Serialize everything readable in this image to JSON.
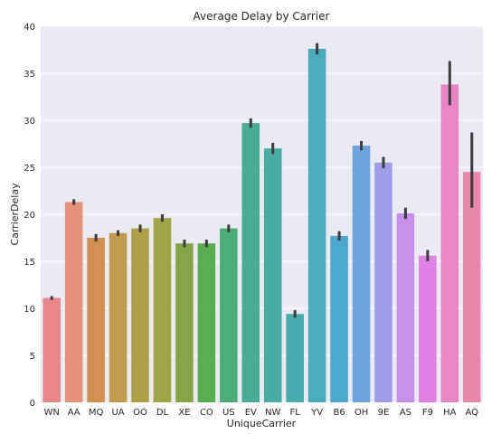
{
  "chart_data": {
    "type": "bar",
    "title": "Average Delay by Carrier",
    "xlabel": "UniqueCarrier",
    "ylabel": "CarrierDelay",
    "ylim": [
      0,
      40
    ],
    "yticks": [
      0,
      5,
      10,
      15,
      20,
      25,
      30,
      35,
      40
    ],
    "grid": true,
    "legend": "none",
    "error_bars": true,
    "categories": [
      "WN",
      "AA",
      "MQ",
      "UA",
      "OO",
      "DL",
      "XE",
      "CO",
      "US",
      "EV",
      "NW",
      "FL",
      "YV",
      "B6",
      "OH",
      "9E",
      "AS",
      "F9",
      "HA",
      "AQ"
    ],
    "values": [
      11.1,
      21.3,
      17.5,
      18.0,
      18.5,
      19.6,
      16.9,
      16.9,
      18.5,
      29.7,
      27.0,
      9.4,
      37.6,
      17.7,
      27.3,
      25.5,
      20.1,
      15.6,
      33.8,
      24.5
    ],
    "error_low": [
      10.9,
      21.0,
      17.1,
      17.7,
      18.1,
      19.2,
      16.5,
      16.5,
      18.1,
      29.2,
      26.4,
      9.0,
      37.0,
      17.2,
      26.8,
      24.9,
      19.5,
      15.0,
      31.6,
      20.7
    ],
    "error_high": [
      11.3,
      21.6,
      17.9,
      18.3,
      18.9,
      20.0,
      17.3,
      17.3,
      18.9,
      30.2,
      27.6,
      9.8,
      38.2,
      18.2,
      27.8,
      26.1,
      20.7,
      16.2,
      36.3,
      28.7
    ],
    "colors": [
      "#e8878b",
      "#e6917a",
      "#d28f4f",
      "#c09a4e",
      "#b09f49",
      "#9da647",
      "#84a447",
      "#59ad4f",
      "#4bad75",
      "#47ac93",
      "#48aca3",
      "#48acad",
      "#4aabbb",
      "#4ca7cc",
      "#6da3dd",
      "#a19ce8",
      "#c68fe8",
      "#e082e3",
      "#e985c5",
      "#ea88ac"
    ]
  }
}
